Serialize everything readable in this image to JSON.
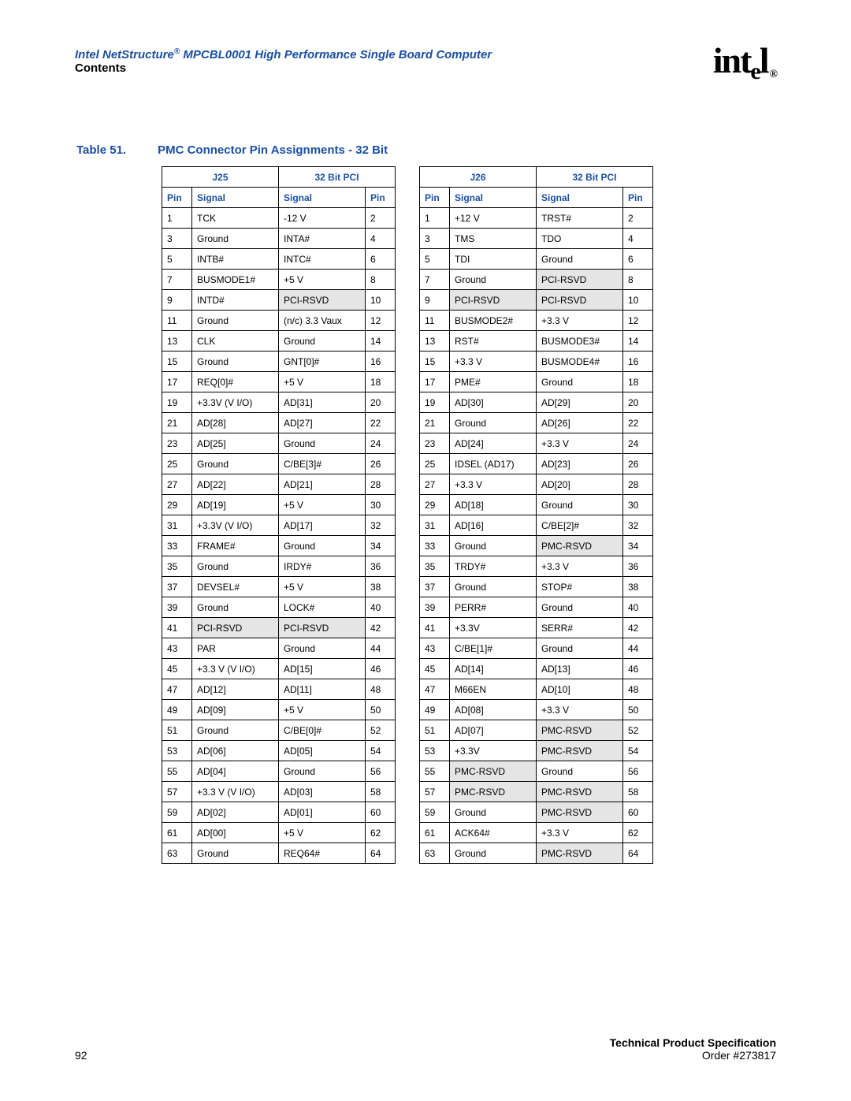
{
  "header": {
    "title_pre": "Intel NetStructure",
    "title_post": " MPCBL0001 High Performance Single Board Computer",
    "subtitle": "Contents",
    "logo_text": "intel"
  },
  "caption": {
    "label": "Table 51.",
    "title": "PMC Connector Pin Assignments - 32 Bit"
  },
  "footer": {
    "page": "92",
    "spec": "Technical Product Specification",
    "order": "Order #273817"
  },
  "tables": {
    "j25": {
      "grp_left": "J25",
      "grp_right": "32 Bit PCI",
      "headers": [
        "Pin",
        "Signal",
        "Signal",
        "Pin"
      ],
      "col_widths": [
        "col-pin",
        "col-sig",
        "col-sig",
        "col-pin"
      ],
      "rows": [
        {
          "c": [
            "1",
            "TCK",
            "-12 V",
            "2"
          ]
        },
        {
          "c": [
            "3",
            "Ground",
            "INTA#",
            "4"
          ]
        },
        {
          "c": [
            "5",
            "INTB#",
            "INTC#",
            "6"
          ]
        },
        {
          "c": [
            "7",
            "BUSMODE1#",
            "+5 V",
            "8"
          ]
        },
        {
          "c": [
            "9",
            "INTD#",
            "PCI-RSVD",
            "10"
          ],
          "shade": [
            2
          ]
        },
        {
          "c": [
            "11",
            "Ground",
            "(n/c) 3.3 Vaux",
            "12"
          ]
        },
        {
          "c": [
            "13",
            "CLK",
            "Ground",
            "14"
          ]
        },
        {
          "c": [
            "15",
            "Ground",
            "GNT[0]#",
            "16"
          ]
        },
        {
          "c": [
            "17",
            "REQ[0]#",
            "+5 V",
            "18"
          ]
        },
        {
          "c": [
            "19",
            "+3.3V (V I/O)",
            "AD[31]",
            "20"
          ]
        },
        {
          "c": [
            "21",
            "AD[28]",
            "AD[27]",
            "22"
          ]
        },
        {
          "c": [
            "23",
            "AD[25]",
            "Ground",
            "24"
          ]
        },
        {
          "c": [
            "25",
            "Ground",
            "C/BE[3]#",
            "26"
          ]
        },
        {
          "c": [
            "27",
            "AD[22]",
            "AD[21]",
            "28"
          ]
        },
        {
          "c": [
            "29",
            "AD[19]",
            "+5 V",
            "30"
          ]
        },
        {
          "c": [
            "31",
            "+3.3V (V I/O)",
            "AD[17]",
            "32"
          ]
        },
        {
          "c": [
            "33",
            "FRAME#",
            "Ground",
            "34"
          ]
        },
        {
          "c": [
            "35",
            "Ground",
            "IRDY#",
            "36"
          ]
        },
        {
          "c": [
            "37",
            "DEVSEL#",
            "+5 V",
            "38"
          ]
        },
        {
          "c": [
            "39",
            "Ground",
            "LOCK#",
            "40"
          ]
        },
        {
          "c": [
            "41",
            "PCI-RSVD",
            "PCI-RSVD",
            "42"
          ],
          "shade": [
            1,
            2
          ]
        },
        {
          "c": [
            "43",
            "PAR",
            "Ground",
            "44"
          ]
        },
        {
          "c": [
            "45",
            "+3.3 V (V I/O)",
            "AD[15]",
            "46"
          ]
        },
        {
          "c": [
            "47",
            "AD[12]",
            "AD[11]",
            "48"
          ]
        },
        {
          "c": [
            "49",
            "AD[09]",
            "+5 V",
            "50"
          ]
        },
        {
          "c": [
            "51",
            "Ground",
            "C/BE[0]#",
            "52"
          ]
        },
        {
          "c": [
            "53",
            "AD[06]",
            "AD[05]",
            "54"
          ]
        },
        {
          "c": [
            "55",
            "AD[04]",
            "Ground",
            "56"
          ]
        },
        {
          "c": [
            "57",
            "+3.3 V (V I/O)",
            "AD[03]",
            "58"
          ]
        },
        {
          "c": [
            "59",
            "AD[02]",
            "AD[01]",
            "60"
          ]
        },
        {
          "c": [
            "61",
            "AD[00]",
            "+5 V",
            "62"
          ]
        },
        {
          "c": [
            "63",
            "Ground",
            "REQ64#",
            "64"
          ]
        }
      ]
    },
    "j26": {
      "grp_left": "J26",
      "grp_right": "32 Bit PCI",
      "headers": [
        "Pin",
        "Signal",
        "Signal",
        "Pin"
      ],
      "col_widths": [
        "col-pin",
        "col-sig",
        "col-sig",
        "col-pin"
      ],
      "rows": [
        {
          "c": [
            "1",
            "+12 V",
            "TRST#",
            "2"
          ]
        },
        {
          "c": [
            "3",
            "TMS",
            "TDO",
            "4"
          ]
        },
        {
          "c": [
            "5",
            "TDI",
            "Ground",
            "6"
          ]
        },
        {
          "c": [
            "7",
            "Ground",
            "PCI-RSVD",
            "8"
          ],
          "shade": [
            2
          ]
        },
        {
          "c": [
            "9",
            "PCI-RSVD",
            "PCI-RSVD",
            "10"
          ],
          "shade": [
            1,
            2
          ]
        },
        {
          "c": [
            "11",
            "BUSMODE2#",
            "+3.3 V",
            "12"
          ]
        },
        {
          "c": [
            "13",
            "RST#",
            "BUSMODE3#",
            "14"
          ]
        },
        {
          "c": [
            "15",
            "+3.3 V",
            "BUSMODE4#",
            "16"
          ]
        },
        {
          "c": [
            "17",
            "PME#",
            "Ground",
            "18"
          ]
        },
        {
          "c": [
            "19",
            "AD[30]",
            "AD[29]",
            "20"
          ]
        },
        {
          "c": [
            "21",
            "Ground",
            "AD[26]",
            "22"
          ]
        },
        {
          "c": [
            "23",
            "AD[24]",
            "+3.3 V",
            "24"
          ]
        },
        {
          "c": [
            "25",
            "IDSEL (AD17)",
            "AD[23]",
            "26"
          ]
        },
        {
          "c": [
            "27",
            "+3.3 V",
            "AD[20]",
            "28"
          ]
        },
        {
          "c": [
            "29",
            "AD[18]",
            "Ground",
            "30"
          ]
        },
        {
          "c": [
            "31",
            "AD[16]",
            "C/BE[2]#",
            "32"
          ]
        },
        {
          "c": [
            "33",
            "Ground",
            "PMC-RSVD",
            "34"
          ],
          "shade": [
            2
          ]
        },
        {
          "c": [
            "35",
            "TRDY#",
            "+3.3 V",
            "36"
          ]
        },
        {
          "c": [
            "37",
            "Ground",
            "STOP#",
            "38"
          ]
        },
        {
          "c": [
            "39",
            "PERR#",
            "Ground",
            "40"
          ]
        },
        {
          "c": [
            "41",
            "+3.3V",
            "SERR#",
            "42"
          ]
        },
        {
          "c": [
            "43",
            "C/BE[1]#",
            "Ground",
            "44"
          ]
        },
        {
          "c": [
            "45",
            "AD[14]",
            "AD[13]",
            "46"
          ]
        },
        {
          "c": [
            "47",
            "M66EN",
            "AD[10]",
            "48"
          ]
        },
        {
          "c": [
            "49",
            "AD[08]",
            "+3.3 V",
            "50"
          ]
        },
        {
          "c": [
            "51",
            "AD[07]",
            "PMC-RSVD",
            "52"
          ],
          "shade": [
            2
          ]
        },
        {
          "c": [
            "53",
            "+3.3V",
            "PMC-RSVD",
            "54"
          ],
          "shade": [
            2
          ]
        },
        {
          "c": [
            "55",
            "PMC-RSVD",
            "Ground",
            "56"
          ],
          "shade": [
            1
          ]
        },
        {
          "c": [
            "57",
            "PMC-RSVD",
            "PMC-RSVD",
            "58"
          ],
          "shade": [
            1,
            2
          ]
        },
        {
          "c": [
            "59",
            "Ground",
            "PMC-RSVD",
            "60"
          ],
          "shade": [
            2
          ]
        },
        {
          "c": [
            "61",
            "ACK64#",
            "+3.3 V",
            "62"
          ]
        },
        {
          "c": [
            "63",
            "Ground",
            "PMC-RSVD",
            "64"
          ],
          "shade": [
            2
          ]
        }
      ]
    }
  }
}
